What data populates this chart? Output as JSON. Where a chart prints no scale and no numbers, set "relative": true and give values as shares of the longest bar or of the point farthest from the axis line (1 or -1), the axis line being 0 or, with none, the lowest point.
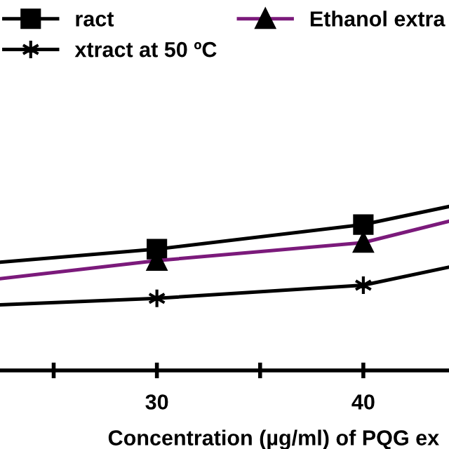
{
  "chart_data": {
    "type": "line",
    "relative": true,
    "xlabel": "Concentration (µg/ml) of PQG ex",
    "x": [
      22.4,
      30,
      40,
      44.15
    ],
    "xlim": [
      22.4,
      44.15
    ],
    "xticks": [
      {
        "value": 25,
        "label": null
      },
      30,
      {
        "value": 35,
        "label": null
      },
      40
    ],
    "series": [
      {
        "name": "ract",
        "color": "#000000",
        "marker": "square",
        "values": [
          0.66,
          0.74,
          0.89,
          1.0
        ]
      },
      {
        "name": "xtract at 50 ºC",
        "color": "#000000",
        "marker": "cross",
        "values": [
          0.4,
          0.44,
          0.52,
          0.63
        ]
      },
      {
        "name": "Ethanol extra",
        "color": "#7b1a7b",
        "marker": "triangle",
        "values": [
          0.56,
          0.67,
          0.78,
          0.91
        ]
      }
    ],
    "legend": "top",
    "grid": false,
    "line_style": "solid"
  }
}
